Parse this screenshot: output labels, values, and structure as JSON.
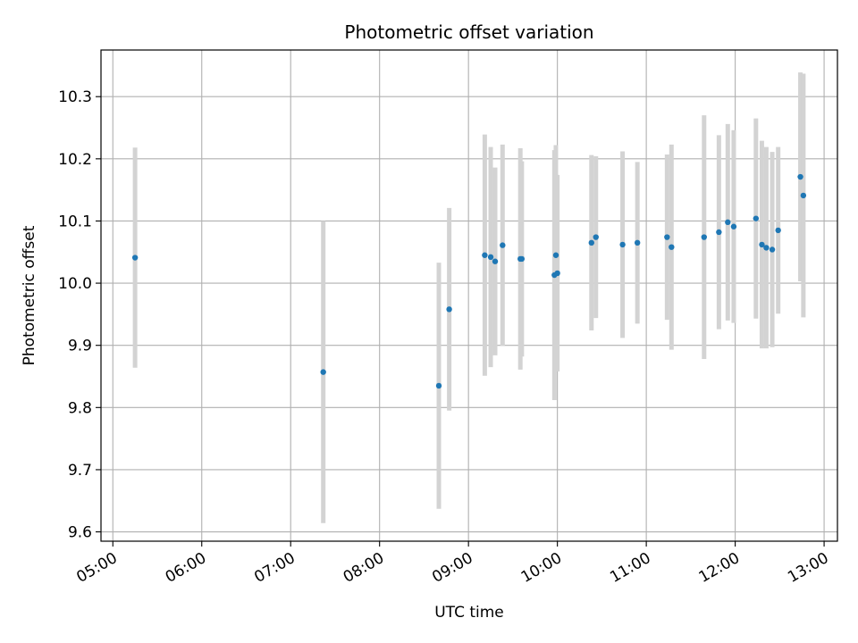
{
  "chart_data": {
    "type": "scatter",
    "title": "Photometric offset variation",
    "xlabel": "UTC time",
    "ylabel": "Photometric offset",
    "x_ticks": [
      "05:00",
      "06:00",
      "07:00",
      "08:00",
      "09:00",
      "10:00",
      "11:00",
      "12:00",
      "13:00"
    ],
    "y_ticks": [
      9.6,
      9.7,
      9.8,
      9.9,
      10.0,
      10.1,
      10.2,
      10.3
    ],
    "xlim": [
      "04:52",
      "13:09"
    ],
    "ylim": [
      9.585,
      10.375
    ],
    "grid": true,
    "colors": {
      "point": "#1f77b4",
      "errorbar": "#d3d3d3",
      "grid": "#b0b0b0"
    },
    "series": [
      {
        "points": [
          {
            "x": "05:15",
            "y": 10.041,
            "err": 0.177
          },
          {
            "x": "07:22",
            "y": 9.857,
            "err": 0.243
          },
          {
            "x": "08:40",
            "y": 9.835,
            "err": 0.198
          },
          {
            "x": "08:47",
            "y": 9.958,
            "err": 0.163
          },
          {
            "x": "09:11",
            "y": 10.045,
            "err": 0.194
          },
          {
            "x": "09:15",
            "y": 10.042,
            "err": 0.177
          },
          {
            "x": "09:18",
            "y": 10.035,
            "err": 0.151
          },
          {
            "x": "09:23",
            "y": 10.061,
            "err": 0.162
          },
          {
            "x": "09:35",
            "y": 10.039,
            "err": 0.178
          },
          {
            "x": "09:36",
            "y": 10.039,
            "err": 0.157
          },
          {
            "x": "09:58",
            "y": 10.013,
            "err": 0.201
          },
          {
            "x": "09:59",
            "y": 10.045,
            "err": 0.177
          },
          {
            "x": "10:00",
            "y": 10.016,
            "err": 0.158
          },
          {
            "x": "10:23",
            "y": 10.065,
            "err": 0.141
          },
          {
            "x": "10:26",
            "y": 10.074,
            "err": 0.13
          },
          {
            "x": "10:44",
            "y": 10.062,
            "err": 0.15
          },
          {
            "x": "10:54",
            "y": 10.065,
            "err": 0.13
          },
          {
            "x": "11:14",
            "y": 10.074,
            "err": 0.133
          },
          {
            "x": "11:17",
            "y": 10.058,
            "err": 0.165
          },
          {
            "x": "11:39",
            "y": 10.074,
            "err": 0.196
          },
          {
            "x": "11:49",
            "y": 10.082,
            "err": 0.156
          },
          {
            "x": "11:55",
            "y": 10.098,
            "err": 0.158
          },
          {
            "x": "11:59",
            "y": 10.091,
            "err": 0.155
          },
          {
            "x": "12:14",
            "y": 10.104,
            "err": 0.161
          },
          {
            "x": "12:18",
            "y": 10.062,
            "err": 0.167
          },
          {
            "x": "12:21",
            "y": 10.057,
            "err": 0.162
          },
          {
            "x": "12:25",
            "y": 10.054,
            "err": 0.157
          },
          {
            "x": "12:29",
            "y": 10.085,
            "err": 0.134
          },
          {
            "x": "12:44",
            "y": 10.171,
            "err": 0.168
          },
          {
            "x": "12:46",
            "y": 10.141,
            "err": 0.196
          }
        ]
      }
    ]
  }
}
